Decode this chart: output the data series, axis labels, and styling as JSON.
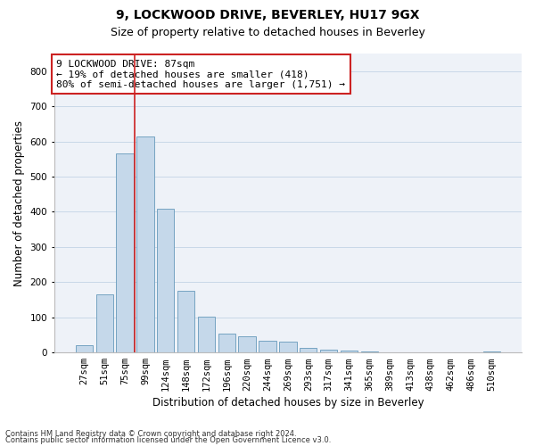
{
  "title": "9, LOCKWOOD DRIVE, BEVERLEY, HU17 9GX",
  "subtitle": "Size of property relative to detached houses in Beverley",
  "xlabel": "Distribution of detached houses by size in Beverley",
  "ylabel": "Number of detached properties",
  "footnote1": "Contains HM Land Registry data © Crown copyright and database right 2024.",
  "footnote2": "Contains public sector information licensed under the Open Government Licence v3.0.",
  "bar_labels": [
    "27sqm",
    "51sqm",
    "75sqm",
    "99sqm",
    "124sqm",
    "148sqm",
    "172sqm",
    "196sqm",
    "220sqm",
    "244sqm",
    "269sqm",
    "293sqm",
    "317sqm",
    "341sqm",
    "365sqm",
    "389sqm",
    "413sqm",
    "438sqm",
    "462sqm",
    "486sqm",
    "510sqm"
  ],
  "bar_values": [
    20,
    165,
    565,
    615,
    410,
    175,
    102,
    55,
    45,
    33,
    30,
    13,
    8,
    5,
    2,
    0,
    0,
    0,
    0,
    0,
    3
  ],
  "bar_color": "#c5d8ea",
  "bar_edgecolor": "#6699bb",
  "grid_color": "#c8d8e8",
  "bg_color": "#eef2f8",
  "vline_color": "#cc2222",
  "annotation_box_text": "9 LOCKWOOD DRIVE: 87sqm\n← 19% of detached houses are smaller (418)\n80% of semi-detached houses are larger (1,751) →",
  "annotation_box_facecolor": "#ffffff",
  "annotation_box_edgecolor": "#cc2222",
  "ylim": [
    0,
    850
  ],
  "yticks": [
    0,
    100,
    200,
    300,
    400,
    500,
    600,
    700,
    800
  ],
  "title_fontsize": 10,
  "subtitle_fontsize": 9,
  "xlabel_fontsize": 8.5,
  "ylabel_fontsize": 8.5,
  "tick_fontsize": 7.5,
  "annotation_fontsize": 8,
  "footnote_fontsize": 6
}
